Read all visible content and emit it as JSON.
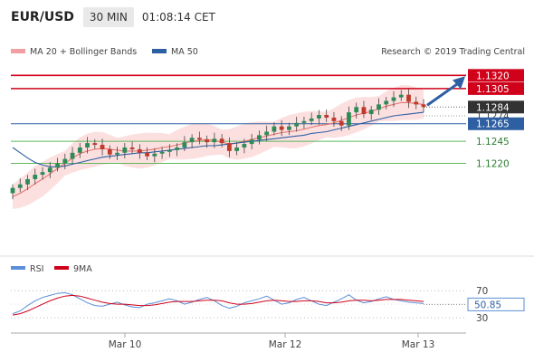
{
  "header": {
    "symbol": "EUR/USD",
    "timeframe": "30 MIN",
    "time": "01:08:14 CET"
  },
  "legend": {
    "ma20": "MA 20 + Bollinger Bands",
    "ma50": "MA 50",
    "credit": "Research © 2019 Trading Central"
  },
  "rsi_legend": {
    "rsi": "RSI",
    "ma": "9MA"
  },
  "colors": {
    "resistance": "#d0021b",
    "support": "#5cb85c",
    "pivot": "#2e5fa3",
    "current": "#333333",
    "bull": "#2e8b57",
    "bear": "#c0392b",
    "band": "#fbd5d5",
    "ma20": "#e8746f",
    "ma50": "#2e5fa3"
  },
  "levels": [
    {
      "label": "1.1320",
      "value": 1.132,
      "kind": "resistance"
    },
    {
      "label": "1.1305",
      "value": 1.1305,
      "kind": "resistance"
    },
    {
      "label": "1.1284",
      "value": 1.1284,
      "kind": "current"
    },
    {
      "label": "1.1274",
      "value": 1.1274,
      "kind": "neutral"
    },
    {
      "label": "1.1265",
      "value": 1.1265,
      "kind": "pivot"
    },
    {
      "label": "1.1245",
      "value": 1.1245,
      "kind": "support"
    },
    {
      "label": "1.1220",
      "value": 1.122,
      "kind": "support"
    }
  ],
  "chart_data": {
    "type": "candlestick",
    "price_range": [
      1.117,
      1.133
    ],
    "x_ticks": [
      "Mar 10",
      "Mar 12",
      "Mar 13"
    ],
    "close_series": [
      1.1192,
      1.1196,
      1.1202,
      1.1207,
      1.121,
      1.1215,
      1.122,
      1.1225,
      1.1232,
      1.1238,
      1.1243,
      1.1241,
      1.1236,
      1.123,
      1.1232,
      1.1238,
      1.1236,
      1.1232,
      1.1228,
      1.1231,
      1.1233,
      1.1235,
      1.1238,
      1.1244,
      1.1249,
      1.1247,
      1.1244,
      1.1248,
      1.1243,
      1.1234,
      1.1238,
      1.1242,
      1.1247,
      1.1252,
      1.1256,
      1.1262,
      1.1258,
      1.1262,
      1.1266,
      1.1268,
      1.1271,
      1.1275,
      1.1272,
      1.1268,
      1.1263,
      1.1278,
      1.1284,
      1.1276,
      1.1281,
      1.1287,
      1.1291,
      1.1295,
      1.1298,
      1.129,
      1.1287,
      1.1284
    ],
    "ma20": [
      1.1182,
      1.1186,
      1.1191,
      1.1197,
      1.1202,
      1.1208,
      1.1214,
      1.122,
      1.1226,
      1.1231,
      1.1234,
      1.1236,
      1.1237,
      1.1236,
      1.1235,
      1.1234,
      1.1234,
      1.1234,
      1.1235,
      1.1236,
      1.1238,
      1.1239,
      1.1241,
      1.1243,
      1.1245,
      1.1246,
      1.1247,
      1.1246,
      1.1244,
      1.1242,
      1.1243,
      1.1245,
      1.1247,
      1.1249,
      1.1251,
      1.1253,
      1.1255,
      1.1256,
      1.1257,
      1.1259,
      1.1261,
      1.1263,
      1.1264,
      1.1266,
      1.1269,
      1.1272,
      1.1275,
      1.1277,
      1.1279,
      1.1282,
      1.1285,
      1.1287,
      1.1289,
      1.1289,
      1.1288,
      1.1287
    ],
    "ma50": [
      1.1238,
      1.1232,
      1.1226,
      1.1221,
      1.1218,
      1.1216,
      1.1216,
      1.1217,
      1.1219,
      1.1221,
      1.1223,
      1.1225,
      1.1227,
      1.1228,
      1.1229,
      1.123,
      1.1231,
      1.1232,
      1.1232,
      1.1233,
      1.1234,
      1.1235,
      1.1236,
      1.1237,
      1.1238,
      1.1239,
      1.124,
      1.124,
      1.1241,
      1.1242,
      1.1243,
      1.1244,
      1.1245,
      1.1246,
      1.1247,
      1.1248,
      1.1249,
      1.125,
      1.1251,
      1.1252,
      1.1254,
      1.1255,
      1.1256,
      1.1258,
      1.126,
      1.1262,
      1.1264,
      1.1266,
      1.1268,
      1.127,
      1.1272,
      1.1274,
      1.1275,
      1.1276,
      1.1277,
      1.1278
    ],
    "rsi": {
      "range": [
        10,
        85
      ],
      "ticks": [
        70,
        30
      ],
      "value_label": "50.85",
      "rsi_values": [
        36,
        40,
        48,
        55,
        60,
        63,
        66,
        67,
        64,
        58,
        52,
        48,
        47,
        50,
        53,
        49,
        46,
        45,
        50,
        52,
        55,
        58,
        55,
        50,
        53,
        57,
        60,
        55,
        48,
        44,
        47,
        52,
        55,
        58,
        62,
        56,
        50,
        52,
        57,
        60,
        55,
        50,
        48,
        53,
        58,
        64,
        56,
        52,
        54,
        58,
        61,
        57,
        55,
        53,
        52,
        51
      ],
      "ma9_values": [
        34,
        36,
        40,
        45,
        50,
        55,
        59,
        62,
        63,
        62,
        59,
        56,
        53,
        51,
        50,
        50,
        49,
        48,
        48,
        49,
        51,
        53,
        54,
        54,
        54,
        55,
        56,
        56,
        55,
        52,
        50,
        50,
        51,
        53,
        55,
        56,
        55,
        54,
        54,
        55,
        55,
        54,
        52,
        52,
        53,
        55,
        56,
        56,
        55,
        56,
        57,
        57,
        57,
        56,
        55,
        54
      ]
    }
  }
}
